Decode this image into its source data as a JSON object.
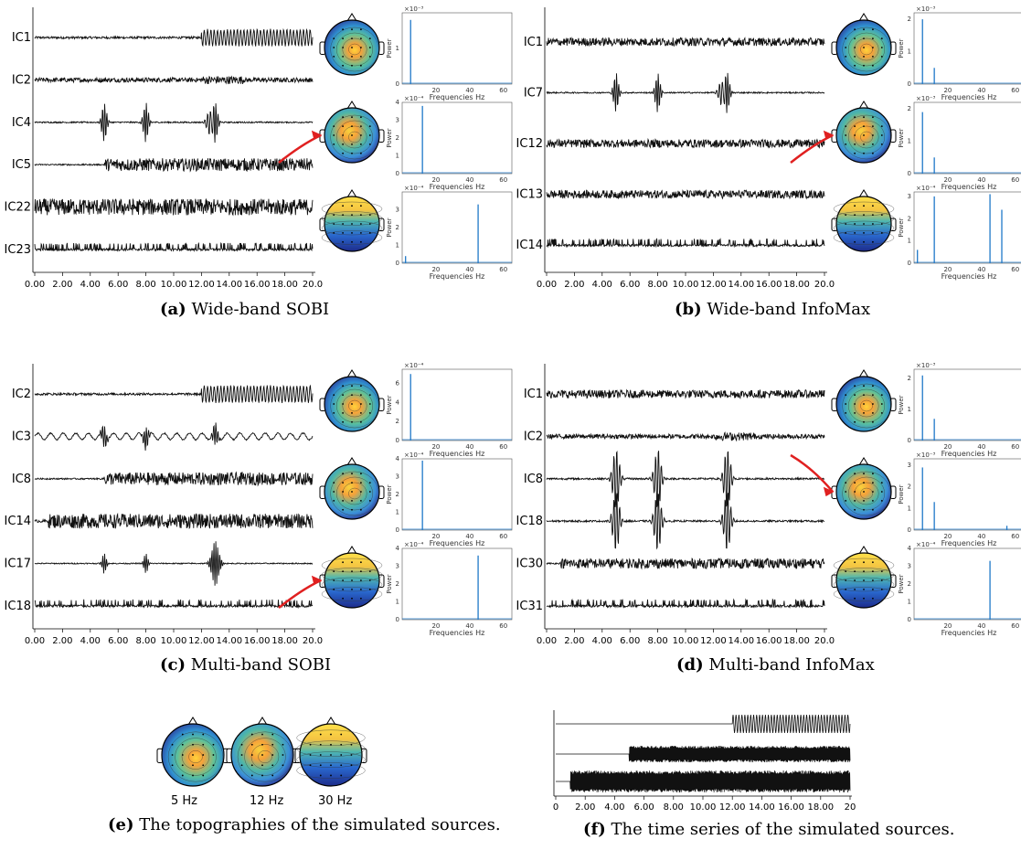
{
  "colors": {
    "trace": "#111111",
    "spectrum": "#1f78c8",
    "arrow": "#e02020"
  },
  "panels": [
    {
      "id": "a",
      "letter": "(a)",
      "caption": "Wide-band SOBI",
      "labels": [
        "IC1",
        "IC2",
        "IC4",
        "IC5",
        "IC22",
        "IC23"
      ],
      "kinds": [
        "onset12_sine",
        "noise_burst12",
        "spikes",
        "onset5_dense",
        "dense",
        "burst_low"
      ],
      "arrow_to": 1,
      "topos": [
        "posterior_center",
        "center",
        "frontal"
      ],
      "spectra": [
        {
          "yexp": "×10⁻³",
          "ticks": [
            "0",
            "1"
          ],
          "peaks": [
            {
              "f": 5,
              "h": 1.8
            }
          ],
          "ymax": 2
        },
        {
          "yexp": "×10⁻⁴",
          "ticks": [
            "0",
            "1",
            "2",
            "3",
            "4"
          ],
          "peaks": [
            {
              "f": 12,
              "h": 3.8
            }
          ],
          "ymax": 4
        },
        {
          "yexp": "×10⁻⁴",
          "ticks": [
            "0",
            "1",
            "2",
            "3"
          ],
          "peaks": [
            {
              "f": 2,
              "h": 0.4
            },
            {
              "f": 45,
              "h": 3.3
            }
          ],
          "ymax": 4
        }
      ]
    },
    {
      "id": "b",
      "letter": "(b)",
      "caption": "Wide-band InfoMax",
      "labels": [
        "IC1",
        "IC7",
        "IC12",
        "IC13",
        "IC14"
      ],
      "kinds": [
        "noise",
        "spikes",
        "noise",
        "noise",
        "burst_low"
      ],
      "arrow_to": 1,
      "topos": [
        "posterior_center",
        "center",
        "frontal_diag"
      ],
      "spectra": [
        {
          "yexp": "×10⁻³",
          "ticks": [
            "0",
            "1",
            "2"
          ],
          "peaks": [
            {
              "f": 5,
              "h": 2.0
            },
            {
              "f": 12,
              "h": 0.5
            }
          ],
          "ymax": 2.2
        },
        {
          "yexp": "×10⁻³",
          "ticks": [
            "0",
            "1",
            "2"
          ],
          "peaks": [
            {
              "f": 5,
              "h": 1.9
            },
            {
              "f": 12,
              "h": 0.5
            }
          ],
          "ymax": 2.2
        },
        {
          "yexp": "×10⁻⁴",
          "ticks": [
            "0",
            "1",
            "2",
            "3"
          ],
          "peaks": [
            {
              "f": 2,
              "h": 0.6
            },
            {
              "f": 12,
              "h": 3.0
            },
            {
              "f": 45,
              "h": 3.1
            },
            {
              "f": 52,
              "h": 2.4
            }
          ],
          "ymax": 3.2
        }
      ]
    },
    {
      "id": "c",
      "letter": "(c)",
      "caption": "Multi-band SOBI",
      "labels": [
        "IC2",
        "IC3",
        "IC8",
        "IC14",
        "IC17",
        "IC18"
      ],
      "kinds": [
        "onset12_sine",
        "wavy",
        "onset5_dense",
        "dense_high",
        "spikes_small",
        "burst_low"
      ],
      "arrow_to": 2,
      "topos": [
        "posterior_center",
        "center",
        "frontal"
      ],
      "spectra": [
        {
          "yexp": "×10⁻⁴",
          "ticks": [
            "0",
            "2",
            "4",
            "6"
          ],
          "peaks": [
            {
              "f": 5,
              "h": 7.0
            }
          ],
          "ymax": 7.5
        },
        {
          "yexp": "×10⁻⁴",
          "ticks": [
            "0",
            "1",
            "2",
            "3",
            "4"
          ],
          "peaks": [
            {
              "f": 12,
              "h": 3.9
            }
          ],
          "ymax": 4
        },
        {
          "yexp": "×10⁻⁴",
          "ticks": [
            "0",
            "1",
            "2",
            "3",
            "4"
          ],
          "peaks": [
            {
              "f": 45,
              "h": 3.6
            }
          ],
          "ymax": 4
        }
      ]
    },
    {
      "id": "d",
      "letter": "(d)",
      "caption": "Multi-band InfoMax",
      "labels": [
        "IC1",
        "IC2",
        "IC8",
        "IC18",
        "IC30",
        "IC31"
      ],
      "kinds": [
        "noise",
        "noise_burst12",
        "spikes_big",
        "spikes_big2",
        "onset1_dense",
        "burst_low"
      ],
      "arrow_to": 1,
      "topos": [
        "posterior_center",
        "center",
        "frontal"
      ],
      "spectra": [
        {
          "yexp": "×10⁻³",
          "ticks": [
            "0",
            "1",
            "2"
          ],
          "peaks": [
            {
              "f": 5,
              "h": 2.1
            },
            {
              "f": 12,
              "h": 0.7
            }
          ],
          "ymax": 2.3
        },
        {
          "yexp": "×10⁻³",
          "ticks": [
            "0",
            "1",
            "2",
            "3"
          ],
          "peaks": [
            {
              "f": 5,
              "h": 2.9
            },
            {
              "f": 12,
              "h": 1.3
            },
            {
              "f": 55,
              "h": 0.2
            }
          ],
          "ymax": 3.3
        },
        {
          "yexp": "×10⁻⁴",
          "ticks": [
            "0",
            "1",
            "2",
            "3",
            "4"
          ],
          "peaks": [
            {
              "f": 45,
              "h": 3.3
            }
          ],
          "ymax": 4
        }
      ]
    }
  ],
  "time_ticks": [
    "0.00",
    "2.00",
    "4.00",
    "6.00",
    "8.00",
    "10.00",
    "12.00",
    "14.00",
    "16.00",
    "18.00",
    "20.0"
  ],
  "spec_xticks": [
    "20",
    "40",
    "60"
  ],
  "spec_ylabel": "Power",
  "spec_xlabel": "Frequencies Hz",
  "panel_e": {
    "letter": "(e)",
    "caption": "The topographies of the simulated sources.",
    "labels": [
      "5 Hz",
      "12 Hz",
      "30 Hz"
    ]
  },
  "panel_f": {
    "letter": "(f)",
    "caption": "The time series of the simulated sources.",
    "ticks": [
      "0",
      "2.00",
      "4.00",
      "6.00",
      "8.00",
      "10.00",
      "12.00",
      "14.00",
      "16.00",
      "18.00",
      "20"
    ]
  }
}
